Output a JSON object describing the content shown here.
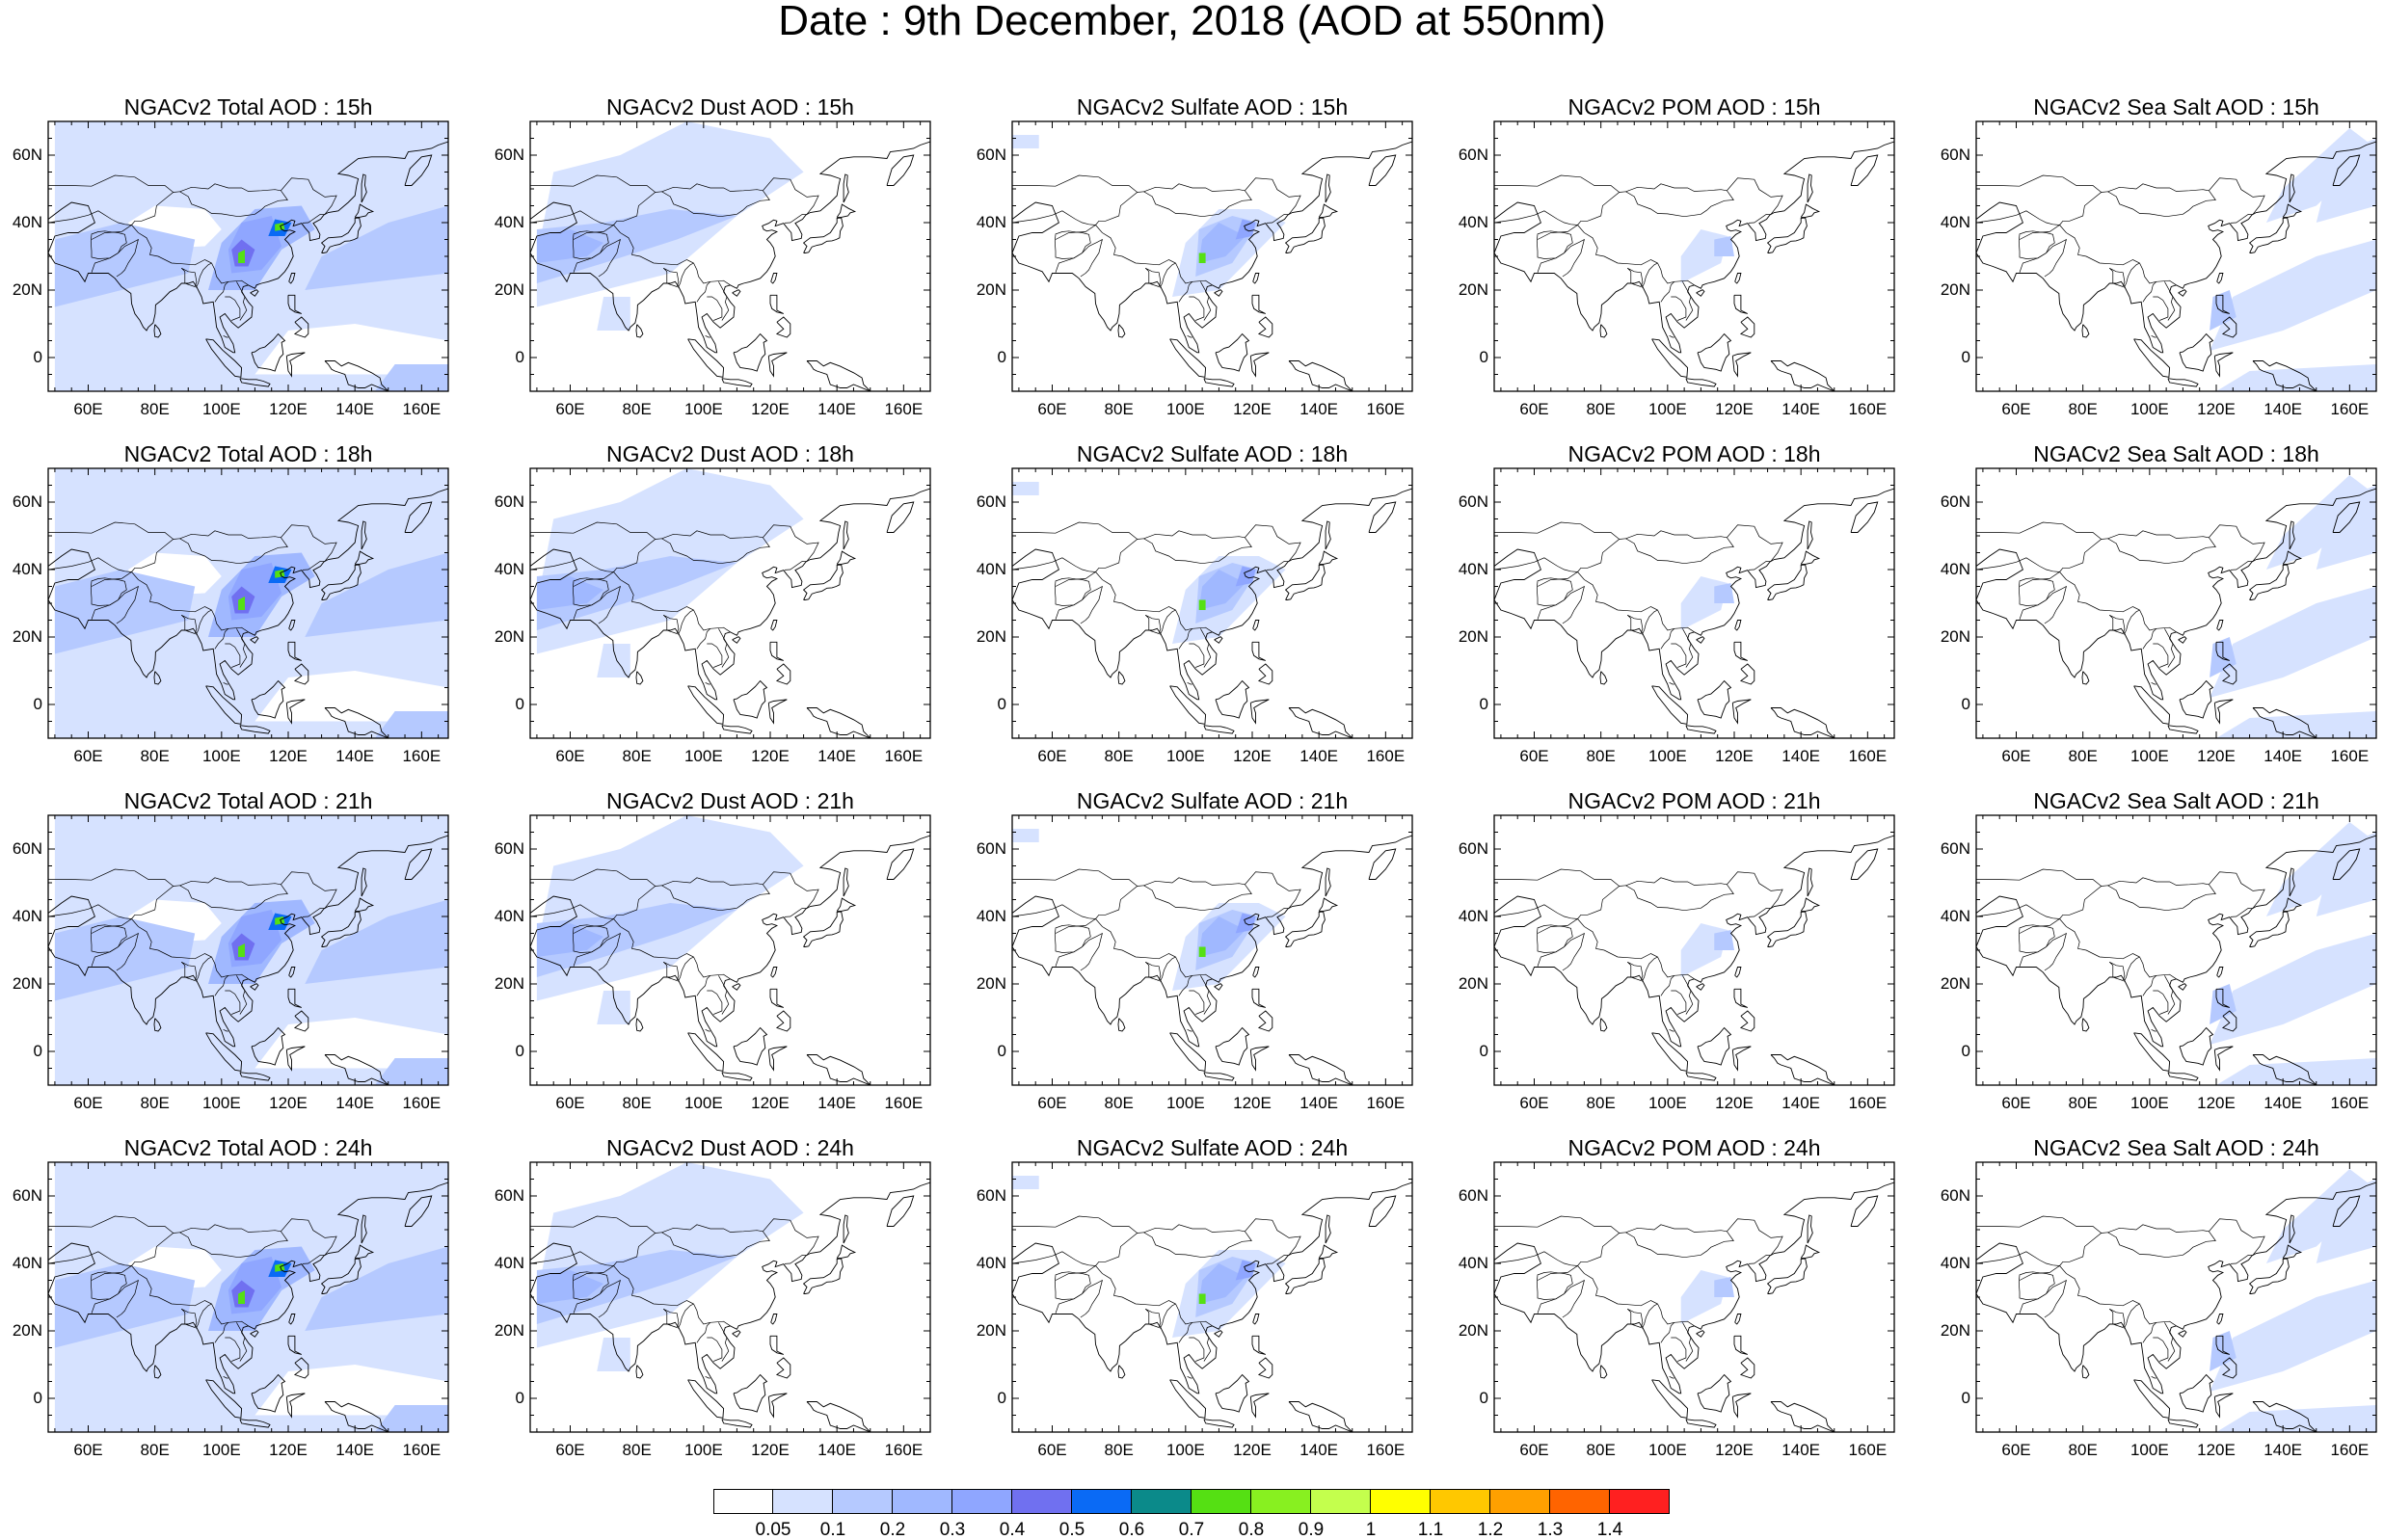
{
  "title": "Date : 9th December, 2018 (AOD at 550nm)",
  "axes": {
    "x_ticks": [
      "60E",
      "80E",
      "100E",
      "120E",
      "140E",
      "160E"
    ],
    "y_ticks": [
      "60N",
      "40N",
      "20N",
      "0"
    ],
    "lon_range": [
      48,
      168
    ],
    "lat_range": [
      -10,
      70
    ]
  },
  "columns": [
    "Total",
    "Dust",
    "Sulfate",
    "POM",
    "Sea Salt"
  ],
  "rows": [
    "15h",
    "18h",
    "21h",
    "24h"
  ],
  "panels": [
    {
      "title": "NGACv2 Total AOD : 15h"
    },
    {
      "title": "NGACv2 Dust AOD : 15h"
    },
    {
      "title": "NGACv2 Sulfate AOD : 15h"
    },
    {
      "title": "NGACv2 POM AOD : 15h"
    },
    {
      "title": "NGACv2 Sea Salt AOD : 15h"
    },
    {
      "title": "NGACv2 Total AOD : 18h"
    },
    {
      "title": "NGACv2 Dust AOD : 18h"
    },
    {
      "title": "NGACv2 Sulfate AOD : 18h"
    },
    {
      "title": "NGACv2 POM AOD : 18h"
    },
    {
      "title": "NGACv2 Sea Salt AOD : 18h"
    },
    {
      "title": "NGACv2 Total AOD : 21h"
    },
    {
      "title": "NGACv2 Dust AOD : 21h"
    },
    {
      "title": "NGACv2 Sulfate AOD : 21h"
    },
    {
      "title": "NGACv2 POM AOD : 21h"
    },
    {
      "title": "NGACv2 Sea Salt AOD : 21h"
    },
    {
      "title": "NGACv2 Total AOD : 24h"
    },
    {
      "title": "NGACv2 Dust AOD : 24h"
    },
    {
      "title": "NGACv2 Sulfate AOD : 24h"
    },
    {
      "title": "NGACv2 POM AOD : 24h"
    },
    {
      "title": "NGACv2 Sea Salt  AOD : 24h"
    }
  ],
  "colorbar": {
    "labels": [
      "0.05",
      "0.1",
      "0.2",
      "0.3",
      "0.4",
      "0.5",
      "0.6",
      "0.7",
      "0.8",
      "0.9",
      "1",
      "1.1",
      "1.2",
      "1.3",
      "1.4"
    ],
    "colors": [
      "#ffffff",
      "#d6e2ff",
      "#b5c9ff",
      "#a0b8ff",
      "#8fa6ff",
      "#7070f0",
      "#0a6af5",
      "#0b8a8a",
      "#55e013",
      "#88f020",
      "#c4ff4d",
      "#ffff00",
      "#ffc800",
      "#ffa000",
      "#ff6400",
      "#ff2020"
    ]
  },
  "colors": {
    "land_outline": "#000000",
    "background": "#ffffff"
  }
}
